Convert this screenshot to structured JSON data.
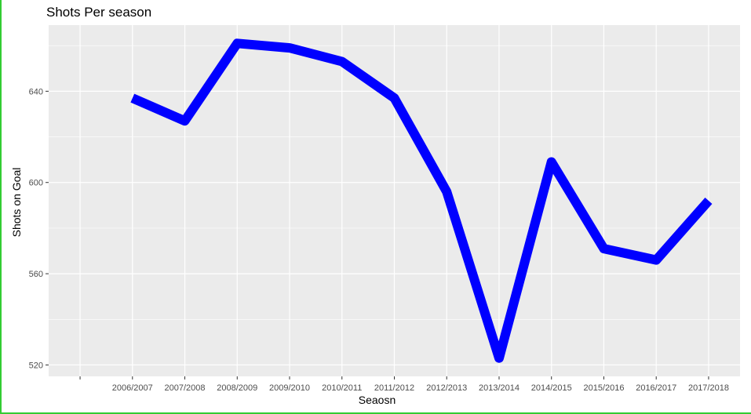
{
  "chart_data": {
    "type": "line",
    "title": "Shots Per season",
    "xlabel": "Seaosn",
    "ylabel": "Shots on Goal",
    "categories": [
      "",
      "2006/2007",
      "2007/2008",
      "2008/2009",
      "2009/2010",
      "2010/2011",
      "2011/2012",
      "2012/2013",
      "2013/2014",
      "2014/2015",
      "2015/2016",
      "2016/2017",
      "2017/2018"
    ],
    "series": [
      {
        "values": [
          null,
          637,
          627,
          661,
          659,
          653,
          637,
          596,
          523,
          609,
          571,
          566,
          592
        ]
      }
    ],
    "ylim": [
      515,
      669
    ],
    "yticks": [
      520,
      560,
      600,
      640
    ],
    "grid": true,
    "legend": "none",
    "colors": {
      "line": "#0000ff",
      "panel": "#ebebeb",
      "grid": "#ffffff",
      "tick_text": "#4d4d4d"
    }
  }
}
